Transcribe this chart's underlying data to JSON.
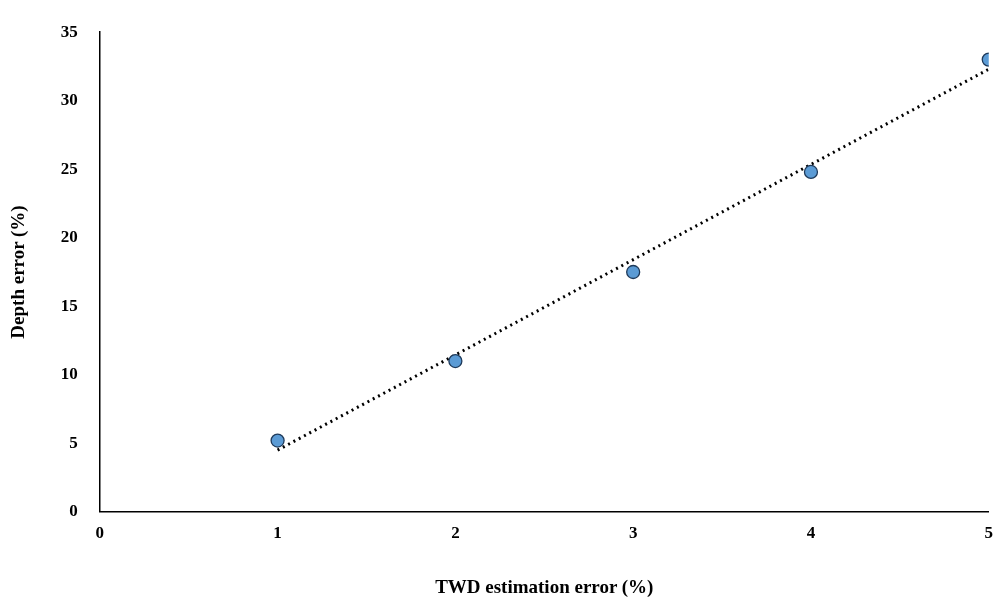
{
  "chart_data": {
    "type": "scatter",
    "xlabel": "TWD estimation error (%)",
    "ylabel": "Depth error (%)",
    "x": [
      1,
      2,
      3,
      4,
      5
    ],
    "series": [
      {
        "color": "#5b9bd5",
        "values": [
          5.2,
          11.0,
          17.5,
          24.8,
          33.0
        ],
        "marker": "circle"
      },
      {
        "type": "line",
        "color": "#000000",
        "x": [
          1,
          5
        ],
        "values": [
          4.5,
          32.3
        ],
        "line_style": "dotted",
        "marker": "none"
      }
    ],
    "xlim": [
      0,
      5
    ],
    "xticks": [
      0,
      1,
      2,
      3,
      4,
      5
    ],
    "ylim": [
      0,
      35
    ],
    "yticks": [
      0,
      5,
      10,
      15,
      20,
      25,
      30,
      35
    ],
    "grid": false,
    "legend": false
  }
}
